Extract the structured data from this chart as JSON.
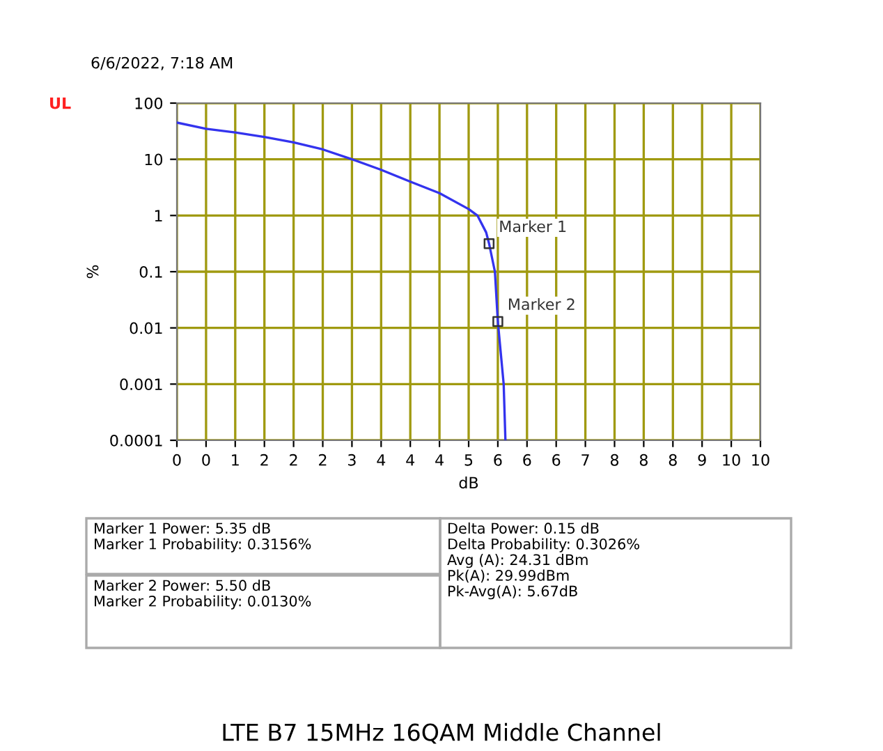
{
  "chart_data": {
    "type": "line",
    "title": "LTE B7 15MHz 16QAM Middle Channel",
    "subtitle": "6/6/2022, 7:18 AM",
    "xlabel": "dB",
    "ylabel": "%",
    "series": [
      {
        "color": "#3333ee",
        "x": [
          0,
          0.5,
          1,
          1.5,
          2,
          2.5,
          3,
          3.5,
          4,
          4.5,
          5,
          5.15,
          5.3,
          5.35,
          5.45,
          5.5,
          5.6,
          5.63
        ],
        "values": [
          45,
          35,
          30,
          25,
          20,
          15,
          10,
          6.5,
          4,
          2.5,
          1.3,
          1.0,
          0.5,
          0.3156,
          0.1,
          0.013,
          0.001,
          0.0001
        ],
        "marker": "none"
      },
      {
        "type": "scatter",
        "color": "#333333",
        "x": [
          5.35,
          5.5
        ],
        "values": [
          0.3156,
          0.013
        ],
        "marker": "square"
      }
    ],
    "annotations": [
      {
        "text": "Marker 1",
        "x": 5.35,
        "y": 0.3156
      },
      {
        "text": "Marker 2",
        "x": 5.5,
        "y": 0.013
      },
      "UL",
      "Marker 1 Power: 5.35 dB\nMarker 1 Probability: 0.3156%",
      "Marker 2 Power: 5.50 dB\nMarker 2 Probability: 0.0130%",
      "Delta Power: 0.15 dB\nDelta Probability: 0.3026%\nAvg (A): 24.31 dBm\nPk(A): 29.99dBm\nPk-Avg(A): 5.67dB"
    ],
    "xlim": [
      0,
      10
    ],
    "xticks": [
      0,
      {
        "value": 0.5,
        "label": "0"
      },
      1,
      {
        "value": 1.5,
        "label": "2"
      },
      2,
      {
        "value": 2.5,
        "label": "2"
      },
      3,
      {
        "value": 3.5,
        "label": "4"
      },
      4,
      {
        "value": 4.5,
        "label": "4"
      },
      5,
      {
        "value": 5.5,
        "label": "6"
      },
      6,
      {
        "value": 6.5,
        "label": "6"
      },
      7,
      {
        "value": 7.5,
        "label": "8"
      },
      8,
      {
        "value": 8.5,
        "label": "8"
      },
      9,
      {
        "value": 9.5,
        "label": "10"
      },
      10
    ],
    "ylim": [
      0.0001,
      100
    ],
    "yticks": [
      100,
      10,
      1,
      0.1,
      0.01,
      0.001,
      0.0001
    ],
    "log": "y",
    "grid": true,
    "legend": false
  }
}
